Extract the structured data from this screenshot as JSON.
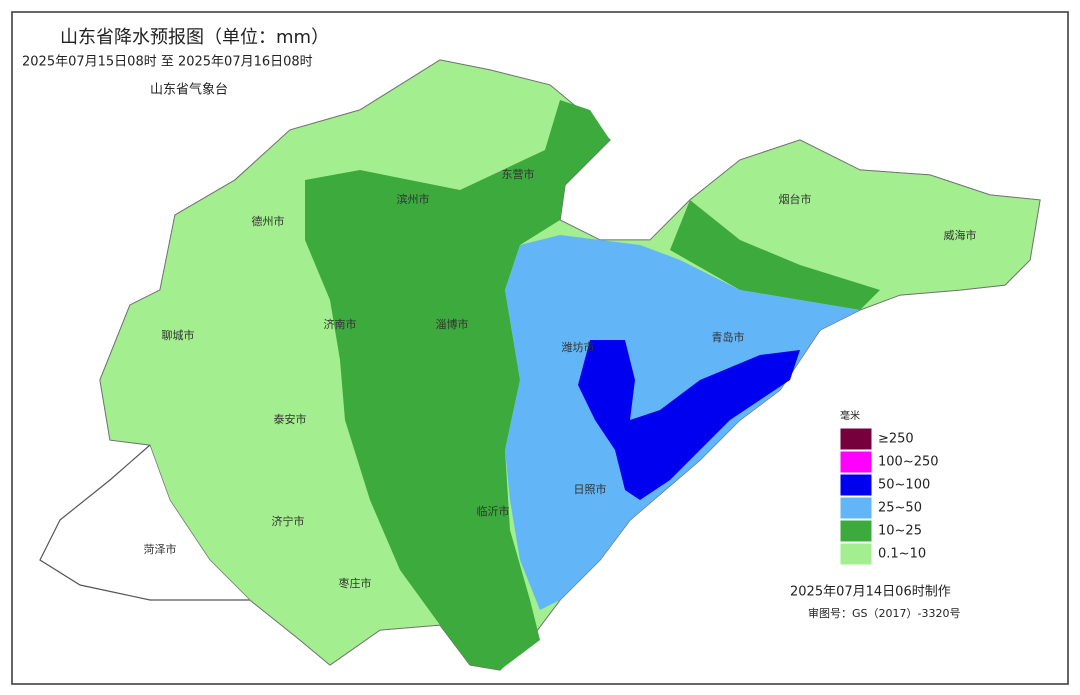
{
  "header": {
    "title": "山东省降水预报图（单位：mm）",
    "period": "2025年07月15日08时 至 2025年07月16日08时",
    "issuer": "山东省气象台"
  },
  "cities": [
    {
      "label": "德州市"
    },
    {
      "label": "滨州市"
    },
    {
      "label": "东营市"
    },
    {
      "label": "烟台市"
    },
    {
      "label": "威海市"
    },
    {
      "label": "聊城市"
    },
    {
      "label": "济南市"
    },
    {
      "label": "淄博市"
    },
    {
      "label": "潍坊市"
    },
    {
      "label": "青岛市"
    },
    {
      "label": "泰安市"
    },
    {
      "label": "日照市"
    },
    {
      "label": "临沂市"
    },
    {
      "label": "济宁市"
    },
    {
      "label": "菏泽市"
    },
    {
      "label": "枣庄市"
    }
  ],
  "legend": {
    "title": "毫米",
    "items": [
      {
        "label": "≥250",
        "color": "#76003c"
      },
      {
        "label": "100~250",
        "color": "#ff00ff"
      },
      {
        "label": "50~100",
        "color": "#0000f0"
      },
      {
        "label": "25~50",
        "color": "#62b5f6"
      },
      {
        "label": "10~25",
        "color": "#3caa3c"
      },
      {
        "label": "0.1~10",
        "color": "#a3ee8e"
      }
    ]
  },
  "footer": {
    "made": "2025年07月14日06时制作",
    "review": "审图号：GS（2017）-3320号"
  }
}
